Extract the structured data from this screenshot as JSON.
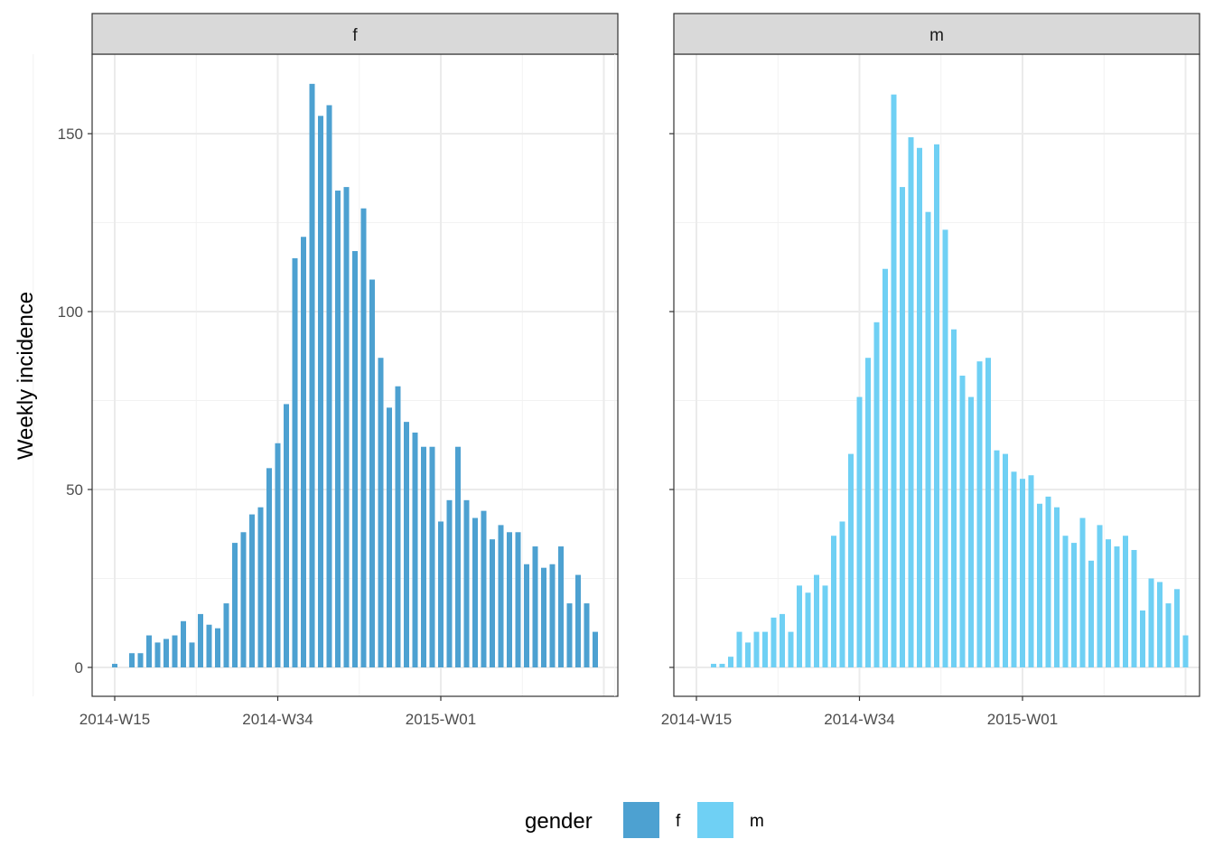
{
  "chart_data": {
    "type": "bar",
    "facet_by": "gender",
    "ylabel": "Weekly incidence",
    "xlabel": "",
    "ylim": [
      -7,
      174
    ],
    "yticks": [
      0,
      50,
      100,
      150
    ],
    "x_week_range": [
      -1,
      60
    ],
    "x_ticks": [
      {
        "week": 0,
        "label": "2014-W15"
      },
      {
        "week": 19,
        "label": "2014-W34"
      },
      {
        "week": 38,
        "label": "2015-W01"
      }
    ],
    "legend": {
      "title": "gender",
      "position": "bottom"
    },
    "panels": [
      {
        "strip": "f",
        "color": "#4da1d1",
        "values": [
          1,
          0,
          4,
          4,
          9,
          7,
          8,
          9,
          13,
          7,
          15,
          12,
          11,
          18,
          35,
          38,
          43,
          45,
          56,
          63,
          74,
          115,
          121,
          164,
          155,
          158,
          134,
          135,
          117,
          129,
          109,
          87,
          73,
          79,
          69,
          66,
          62,
          62,
          41,
          47,
          62,
          47,
          42,
          44,
          36,
          40,
          38,
          38,
          29,
          34,
          28,
          29,
          34,
          18,
          26,
          18,
          10
        ]
      },
      {
        "strip": "m",
        "color": "#6fd0f4",
        "values": [
          0,
          0,
          1,
          1,
          3,
          10,
          7,
          10,
          10,
          14,
          15,
          10,
          23,
          21,
          26,
          23,
          37,
          41,
          60,
          76,
          87,
          97,
          112,
          161,
          135,
          149,
          146,
          128,
          147,
          123,
          95,
          82,
          76,
          86,
          87,
          61,
          60,
          55,
          53,
          54,
          46,
          48,
          45,
          37,
          35,
          42,
          30,
          40,
          36,
          34,
          37,
          33,
          16,
          25,
          24,
          18,
          22,
          9
        ]
      }
    ]
  }
}
